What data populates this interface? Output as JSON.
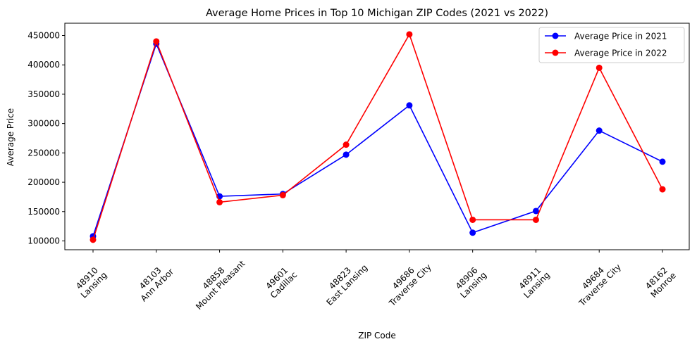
{
  "chart_data": {
    "type": "line",
    "title": "Average Home Prices in Top 10 Michigan ZIP Codes (2021 vs 2022)",
    "xlabel": "ZIP Code",
    "ylabel": "Average Price",
    "categories": [
      [
        "48910",
        "Lansing"
      ],
      [
        "48103",
        "Ann Arbor"
      ],
      [
        "48858",
        "Mount Pleasant"
      ],
      [
        "49601",
        "Cadillac"
      ],
      [
        "48823",
        "East Lansing"
      ],
      [
        "49686",
        "Traverse City"
      ],
      [
        "48906",
        "Lansing"
      ],
      [
        "48911",
        "Lansing"
      ],
      [
        "49684",
        "Traverse City"
      ],
      [
        "48162",
        "Monroe"
      ]
    ],
    "yticks": [
      "100000",
      "150000",
      "200000",
      "250000",
      "300000",
      "350000",
      "400000",
      "450000"
    ],
    "ylim": [
      85000,
      471000
    ],
    "grid": false,
    "legend_position": "top-right",
    "series": [
      {
        "name": "Average Price in 2021",
        "color": "#0000ff",
        "marker": "circle",
        "values": [
          108000,
          436000,
          176000,
          180000,
          247000,
          331000,
          114000,
          151000,
          288000,
          235000
        ]
      },
      {
        "name": "Average Price in 2022",
        "color": "#ff0000",
        "marker": "circle",
        "values": [
          102000,
          440000,
          166000,
          178000,
          264000,
          452000,
          136000,
          136000,
          395000,
          188000
        ]
      }
    ]
  }
}
